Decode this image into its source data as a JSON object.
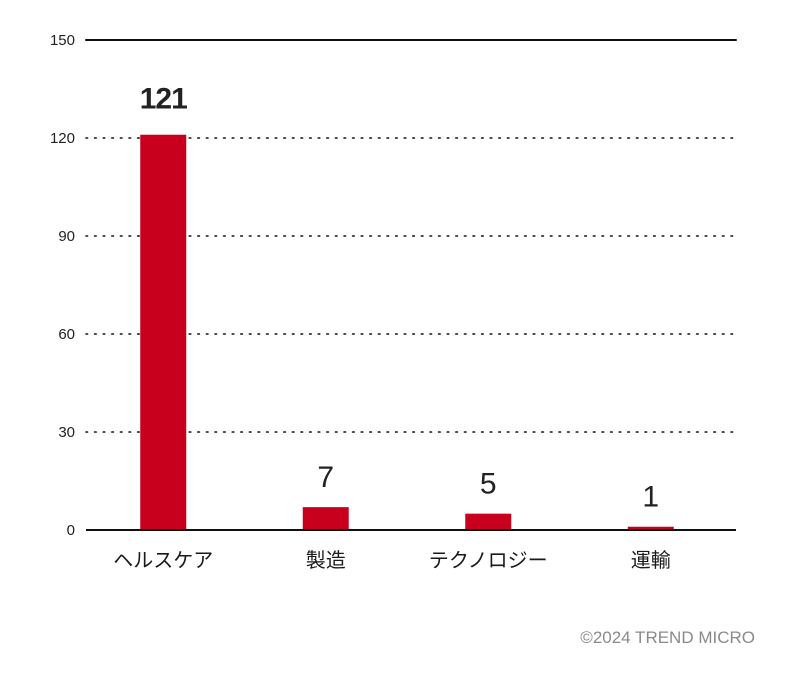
{
  "chart_data": {
    "type": "bar",
    "categories": [
      "ヘルスケア",
      "製造",
      "テクノロジー",
      "運輸"
    ],
    "values": [
      121,
      7,
      5,
      1
    ],
    "data_labels": [
      "121",
      "7",
      "5",
      "1"
    ],
    "ylim": [
      0,
      150
    ],
    "yticks": [
      0,
      30,
      60,
      90,
      120,
      150
    ],
    "ytick_labels": [
      "0",
      "30",
      "60",
      "90",
      "120",
      "150"
    ],
    "grid": "dotted horizontal",
    "highlight_index": 0,
    "bar_color": "#c8001e",
    "highlight_label_color": "#c8001e",
    "text_color": "#222222"
  },
  "footer": {
    "copyright": "©2024 TREND MICRO"
  }
}
